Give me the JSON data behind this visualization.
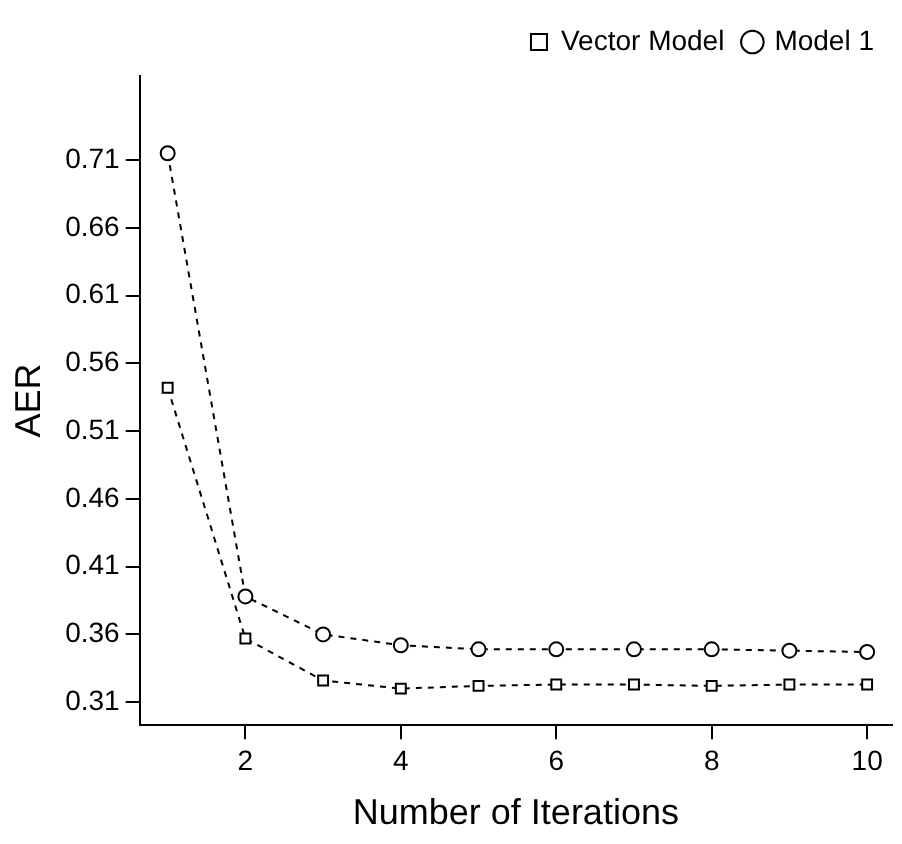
{
  "chart_data": {
    "type": "line",
    "xlabel": "Number of Iterations",
    "ylabel": "AER",
    "x": [
      1,
      2,
      3,
      4,
      5,
      6,
      7,
      8,
      9,
      10
    ],
    "series": [
      {
        "name": "Vector Model",
        "color": "#000000",
        "marker": "square",
        "values": [
          0.542,
          0.357,
          0.326,
          0.32,
          0.322,
          0.323,
          0.323,
          0.322,
          0.323,
          0.323
        ]
      },
      {
        "name": "Model 1",
        "color": "#000000",
        "marker": "circle",
        "values": [
          0.715,
          0.388,
          0.36,
          0.352,
          0.349,
          0.349,
          0.349,
          0.349,
          0.348,
          0.347
        ]
      }
    ],
    "xlim": [
      0.64,
      10.32
    ],
    "xticks": [
      2,
      4,
      6,
      8,
      10
    ],
    "ylim": [
      0.293,
      0.772
    ],
    "yticks": [
      0.31,
      0.36,
      0.41,
      0.46,
      0.51,
      0.56,
      0.61,
      0.66,
      0.71
    ],
    "grid": false,
    "legend": "top right",
    "line_style": "dashed"
  }
}
